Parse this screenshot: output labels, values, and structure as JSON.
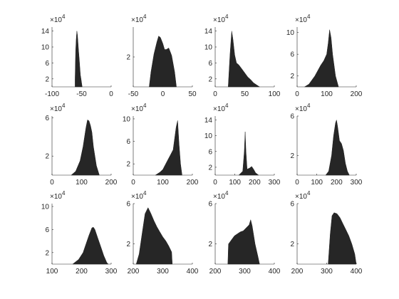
{
  "chart_data": [
    {
      "type": "histogram",
      "xlim": [
        -100,
        0
      ],
      "xticks": [
        "-100",
        "-50",
        "0"
      ],
      "yticks": [
        "2",
        "6",
        "10",
        "14"
      ],
      "exponent": "4",
      "x": [
        -61,
        -60,
        -59,
        -58,
        -57,
        -56,
        -55,
        -54,
        -53,
        -52,
        -51,
        -50,
        -49
      ],
      "y": [
        2,
        9,
        12,
        14,
        13,
        11,
        9,
        7,
        5,
        3,
        2,
        1,
        0
      ]
    },
    {
      "type": "histogram",
      "xlim": [
        -50,
        50
      ],
      "xticks": [
        "-50",
        "0",
        "50"
      ],
      "yticks": [
        "2"
      ],
      "exponent": "4",
      "x": [
        -23,
        -20,
        -15,
        -10,
        -7,
        -4,
        0,
        3,
        6,
        10,
        12,
        15,
        20,
        23
      ],
      "y": [
        0,
        1.0,
        2.2,
        3.0,
        3.4,
        3.3,
        2.9,
        2.5,
        2.5,
        2.6,
        2.4,
        2.1,
        1.0,
        0
      ]
    },
    {
      "type": "histogram",
      "xlim": [
        0,
        100
      ],
      "xticks": [
        "0",
        "50",
        "100"
      ],
      "yticks": [
        "2",
        "6",
        "10",
        "14"
      ],
      "exponent": "4",
      "x": [
        22,
        25,
        28,
        30,
        33,
        36,
        40,
        45,
        50,
        55,
        60,
        65,
        70,
        75
      ],
      "y": [
        0,
        8,
        14,
        12,
        8,
        6,
        5.5,
        4.5,
        3.5,
        2.5,
        1.8,
        1.0,
        0.5,
        0
      ]
    },
    {
      "type": "histogram",
      "xlim": [
        0,
        200
      ],
      "xticks": [
        "0",
        "100",
        "200"
      ],
      "yticks": [
        "2",
        "6",
        "10"
      ],
      "exponent": "4",
      "x": [
        25,
        40,
        60,
        80,
        90,
        100,
        105,
        110,
        115,
        120,
        130,
        140
      ],
      "y": [
        0,
        0.5,
        2,
        4,
        4.8,
        6,
        8.0,
        10.5,
        9,
        6,
        2,
        0
      ]
    },
    {
      "type": "histogram",
      "xlim": [
        0,
        200
      ],
      "xticks": [
        "0",
        "100",
        "200"
      ],
      "yticks": [
        "2",
        "6"
      ],
      "exponent": "4",
      "x": [
        65,
        80,
        95,
        105,
        115,
        120,
        125,
        130,
        135,
        140,
        150,
        160
      ],
      "y": [
        0,
        0.4,
        1.5,
        3.0,
        5.0,
        5.8,
        5.7,
        5.2,
        4.5,
        3.0,
        1.0,
        0
      ]
    },
    {
      "type": "histogram",
      "xlim": [
        0,
        200
      ],
      "xticks": [
        "0",
        "100",
        "200"
      ],
      "yticks": [
        "2",
        "6",
        "10"
      ],
      "exponent": "4",
      "x": [
        75,
        90,
        100,
        115,
        125,
        135,
        140,
        145,
        150,
        155,
        160,
        165
      ],
      "y": [
        0,
        0.5,
        1.0,
        2.5,
        3.5,
        4.5,
        6.5,
        8.5,
        9.7,
        5.5,
        2.0,
        0
      ]
    },
    {
      "type": "histogram",
      "xlim": [
        0,
        300
      ],
      "xticks": [
        "0",
        "100",
        "200",
        "300"
      ],
      "yticks": [
        "2",
        "6",
        "10",
        "14"
      ],
      "exponent": "4",
      "x": [
        120,
        140,
        148,
        152,
        156,
        162,
        175,
        185,
        195,
        205,
        220
      ],
      "y": [
        0,
        1.0,
        6.0,
        11.0,
        6.0,
        1.5,
        1.8,
        2.2,
        1.5,
        0.6,
        0
      ]
    },
    {
      "type": "histogram",
      "xlim": [
        0,
        300
      ],
      "xticks": [
        "0",
        "100",
        "200",
        "300"
      ],
      "yticks": [
        "2",
        "6"
      ],
      "exponent": "4",
      "x": [
        145,
        160,
        175,
        185,
        195,
        200,
        205,
        215,
        225,
        235,
        245,
        255,
        265
      ],
      "y": [
        0,
        0.4,
        2.0,
        4.0,
        5.3,
        5.6,
        5.0,
        3.5,
        3.2,
        2.5,
        1.2,
        0.4,
        0
      ]
    },
    {
      "type": "histogram",
      "xlim": [
        100,
        300
      ],
      "xticks": [
        "100",
        "200",
        "300"
      ],
      "yticks": [
        "2",
        "6",
        "10"
      ],
      "exponent": "4",
      "x": [
        170,
        190,
        205,
        215,
        225,
        235,
        240,
        245,
        255,
        265,
        275,
        285,
        290
      ],
      "y": [
        0,
        0.8,
        2.0,
        3.5,
        5.0,
        6.3,
        6.4,
        6.0,
        4.5,
        3.0,
        1.5,
        0.3,
        0
      ]
    },
    {
      "type": "histogram",
      "xlim": [
        200,
        400
      ],
      "xticks": [
        "200",
        "300",
        "400"
      ],
      "yticks": [
        "2",
        "6"
      ],
      "exponent": "4",
      "x": [
        210,
        220,
        230,
        240,
        250,
        260,
        270,
        280,
        290,
        300,
        310,
        320,
        330,
        332
      ],
      "y": [
        0,
        1.0,
        3.0,
        5.0,
        5.6,
        5.0,
        4.3,
        3.7,
        3.2,
        2.7,
        2.3,
        1.8,
        1.2,
        0
      ]
    },
    {
      "type": "histogram",
      "xlim": [
        200,
        400
      ],
      "xticks": [
        "200",
        "300",
        "400"
      ],
      "yticks": [
        "2",
        "6"
      ],
      "exponent": "4",
      "x": [
        243,
        245,
        255,
        265,
        275,
        285,
        295,
        305,
        315,
        320,
        325,
        335,
        345,
        350
      ],
      "y": [
        0,
        2.0,
        2.4,
        2.8,
        3.0,
        3.2,
        3.3,
        3.6,
        3.9,
        4.4,
        3.8,
        2.0,
        0.7,
        0
      ]
    },
    {
      "type": "histogram",
      "xlim": [
        200,
        400
      ],
      "xticks": [
        "200",
        "300",
        "400"
      ],
      "yticks": [
        "2",
        "6"
      ],
      "exponent": "4",
      "x": [
        305,
        312,
        318,
        325,
        335,
        345,
        355,
        365,
        375,
        385,
        395,
        400
      ],
      "y": [
        0,
        3.0,
        4.8,
        5.1,
        5.0,
        4.6,
        4.0,
        3.4,
        2.8,
        2.0,
        1.0,
        0
      ]
    }
  ]
}
